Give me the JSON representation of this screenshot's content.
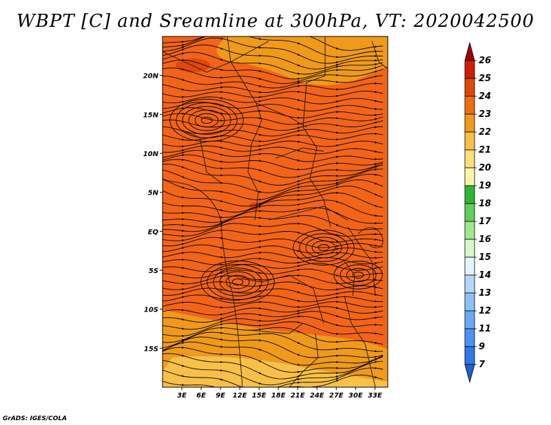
{
  "title": "WBPT [C] and Sreamline at 300hPa, VT: 2020042500",
  "credit": "GrADS: IGES/COLA",
  "map": {
    "lon_range": [
      0,
      35
    ],
    "lat_range": [
      -20,
      25
    ],
    "x_ticks": [
      "3E",
      "6E",
      "9E",
      "12E",
      "15E",
      "18E",
      "21E",
      "24E",
      "27E",
      "30E",
      "33E"
    ],
    "y_ticks": [
      "20N",
      "15N",
      "10N",
      "5N",
      "EQ",
      "5S",
      "10S",
      "15S"
    ]
  },
  "colorbar": {
    "labels": [
      "7",
      "9",
      "11",
      "12",
      "13",
      "14",
      "15",
      "16",
      "17",
      "18",
      "19",
      "20",
      "21",
      "22",
      "23",
      "24",
      "25",
      "26"
    ],
    "colors": [
      "#1f5fd0",
      "#2f78e6",
      "#4a93ef",
      "#6aaaf4",
      "#8cc1f7",
      "#b3d8fb",
      "#e3f4fb",
      "#d7f7cc",
      "#9fe88f",
      "#5fd05a",
      "#2fb634",
      "#fff5a8",
      "#fbe07a",
      "#f7c048",
      "#f09a1a",
      "#ee6f10",
      "#e04708",
      "#cc1f04",
      "#a00000"
    ]
  },
  "field": {
    "base_color": "#f26418",
    "warm_color": "#f09a1a",
    "warm_light_color": "#f7c048",
    "hot_color": "#e04708"
  }
}
